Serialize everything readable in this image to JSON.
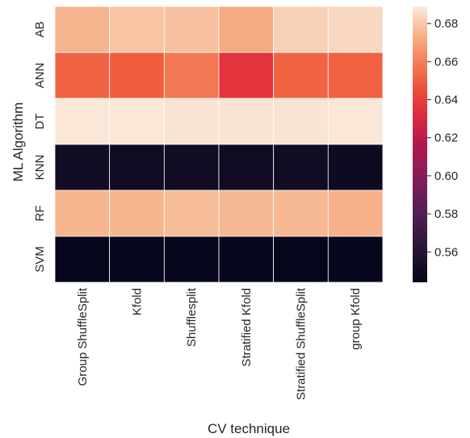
{
  "chart_data": {
    "type": "heatmap",
    "title": "",
    "xlabel": "CV technique",
    "ylabel": "ML Algorithm",
    "x_categories": [
      "Group ShuffleSplit",
      "Kfold",
      "Shufflesplit",
      "Stratified Kfold",
      "Stratified ShuffleSplit",
      "group Kfold"
    ],
    "y_categories": [
      "AB",
      "ANN",
      "DT",
      "KNN",
      "RF",
      "SVM"
    ],
    "values": [
      [
        0.675,
        0.679,
        0.678,
        0.672,
        0.682,
        0.684
      ],
      [
        0.652,
        0.65,
        0.658,
        0.636,
        0.652,
        0.651
      ],
      [
        0.688,
        0.688,
        0.687,
        0.687,
        0.687,
        0.688
      ],
      [
        0.551,
        0.55,
        0.551,
        0.55,
        0.551,
        0.549
      ],
      [
        0.675,
        0.675,
        0.677,
        0.676,
        0.676,
        0.674
      ],
      [
        0.545,
        0.546,
        0.546,
        0.546,
        0.545,
        0.546
      ]
    ],
    "colorbar": {
      "min": 0.544,
      "max": 0.689,
      "ticks": [
        "0.56",
        "0.58",
        "0.60",
        "0.62",
        "0.64",
        "0.66",
        "0.68"
      ],
      "colormap": "rocket"
    },
    "grid": false,
    "legend": "colorbar-right"
  }
}
